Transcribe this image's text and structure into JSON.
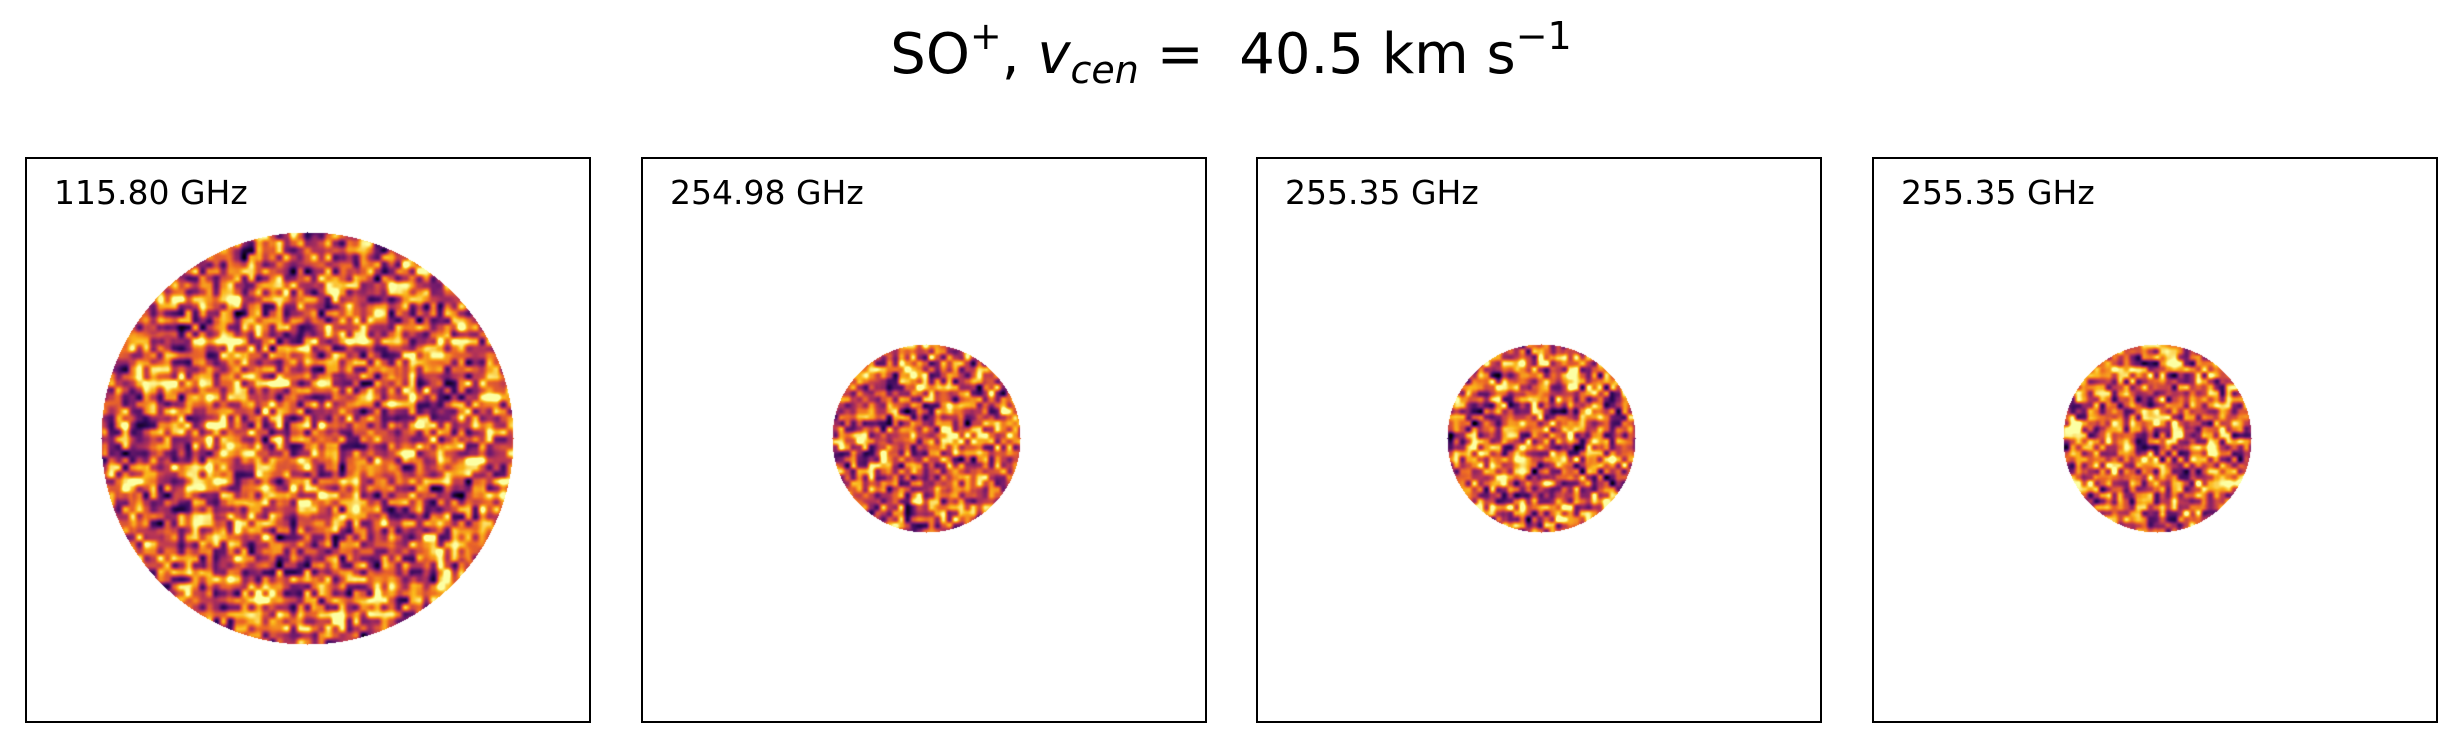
{
  "figure": {
    "title": {
      "species": "SO",
      "species_charge": "+",
      "separator": ",",
      "velocity_symbol": "v",
      "velocity_subscript": "cen",
      "equals": "=",
      "velocity_value": "40.5",
      "unit_main": "km s",
      "unit_exponent": "−1"
    }
  },
  "panels": [
    {
      "label": "115.80 GHz",
      "map": "noise-map",
      "colormap": "inferno"
    },
    {
      "label": "254.98 GHz",
      "map": "noise-map",
      "colormap": "inferno"
    },
    {
      "label": "255.35 GHz",
      "map": "noise-map",
      "colormap": "inferno"
    },
    {
      "label": "255.35 GHz",
      "map": "noise-map",
      "colormap": "inferno"
    }
  ],
  "colors": {
    "frame": "#000000",
    "background": "#ffffff",
    "inferno_stops": [
      "#000004",
      "#320a5e",
      "#781c6d",
      "#bc3754",
      "#ed6925",
      "#fbb61a",
      "#fcffa4"
    ]
  }
}
